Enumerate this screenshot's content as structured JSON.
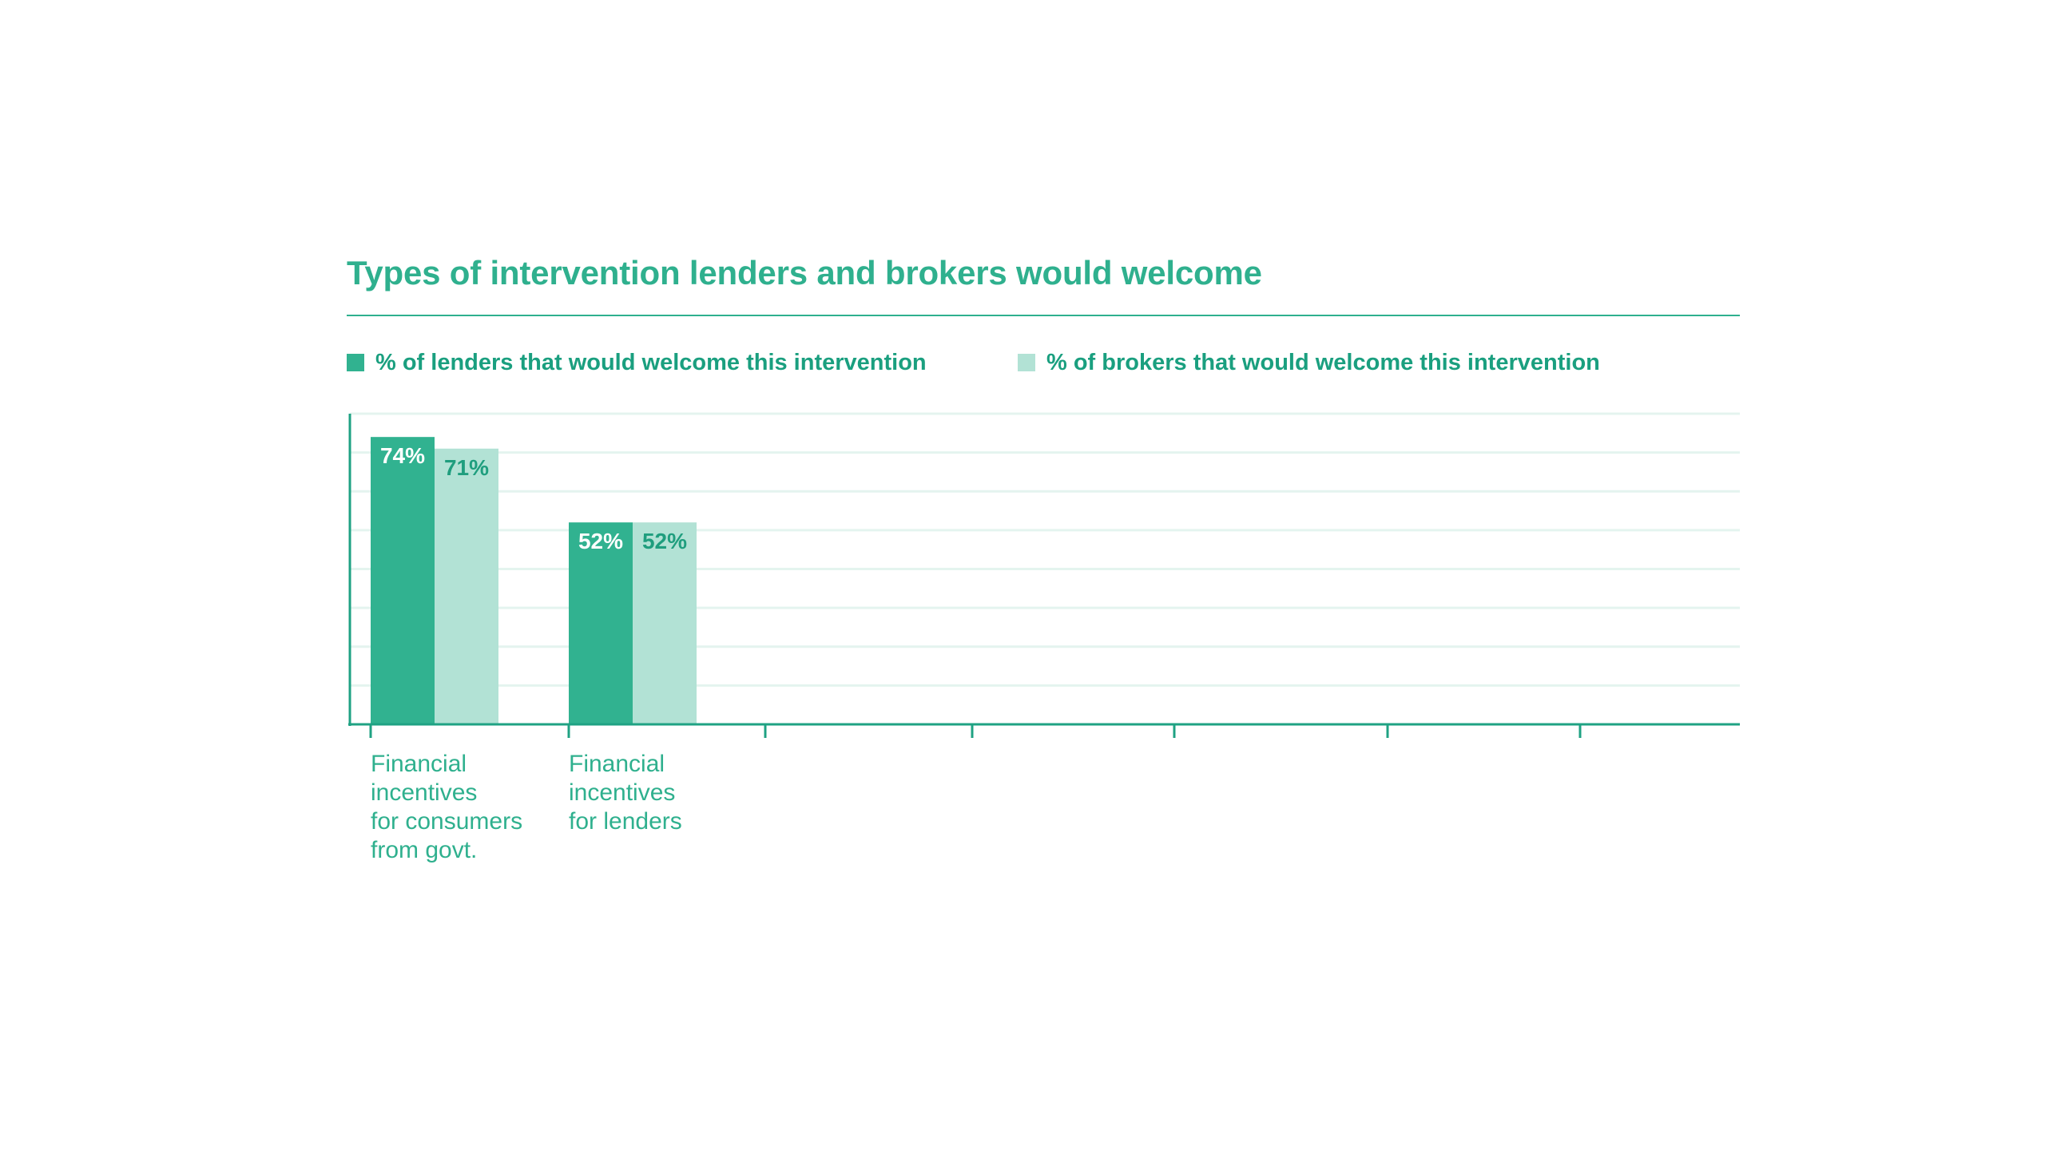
{
  "chart_data": {
    "type": "bar",
    "title": "Types of intervention lenders and brokers would welcome",
    "categories": [
      [
        "Financial",
        "incentives",
        "for consumers",
        "from govt."
      ],
      [
        "Financial",
        "incentives",
        "for lenders"
      ]
    ],
    "series": [
      {
        "name": "% of lenders that would welcome this intervention",
        "values": [
          74,
          52
        ],
        "labels": [
          "74%",
          "52%"
        ],
        "color": "#31b290",
        "label_color": "#ffffff"
      },
      {
        "name": "% of brokers that would welcome this intervention",
        "values": [
          71,
          52
        ],
        "labels": [
          "71%",
          "52%"
        ],
        "color": "#b2e2d5",
        "label_color": "#1f9e7e"
      }
    ],
    "ylim": [
      0,
      80
    ],
    "grid": true,
    "legend_position": "top-left",
    "empty_slots": 5
  },
  "colors": {
    "accent": "#2fb08e",
    "grid": "#e4f4ef",
    "axis": "#1fa283"
  }
}
